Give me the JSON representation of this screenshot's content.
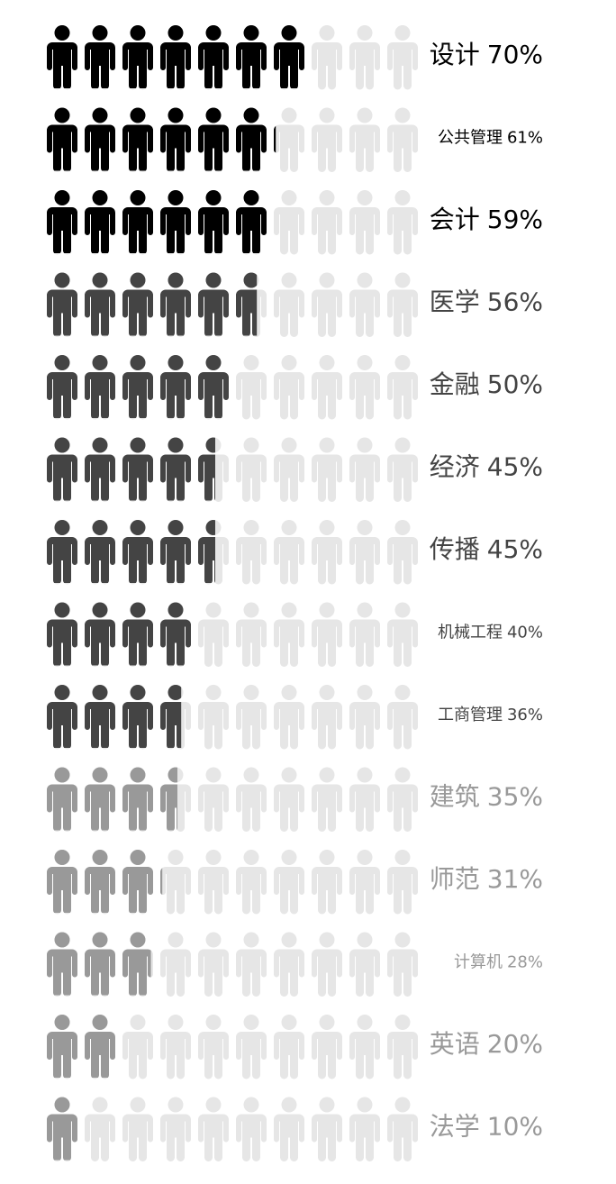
{
  "chart_data": {
    "type": "pictograph",
    "categories": [
      "设计",
      "公共管理",
      "会计",
      "医学",
      "金融",
      "经济",
      "传播",
      "机械工程",
      "工商管理",
      "建筑",
      "师范",
      "计算机",
      "英语",
      "法学"
    ],
    "values": [
      70,
      61,
      59,
      56,
      50,
      45,
      45,
      40,
      36,
      35,
      31,
      28,
      20,
      10
    ],
    "value_labels": [
      "70%",
      "61%",
      "59%",
      "56%",
      "50%",
      "45%",
      "45%",
      "40%",
      "36%",
      "35%",
      "31%",
      "28%",
      "20%",
      "10%"
    ],
    "colors": [
      "#000000",
      "#000000",
      "#000000",
      "#444444",
      "#444444",
      "#444444",
      "#444444",
      "#444444",
      "#444444",
      "#999999",
      "#999999",
      "#999999",
      "#999999",
      "#999999"
    ],
    "empty_color": "#e6e6e6",
    "xlim": [
      0,
      100
    ]
  }
}
